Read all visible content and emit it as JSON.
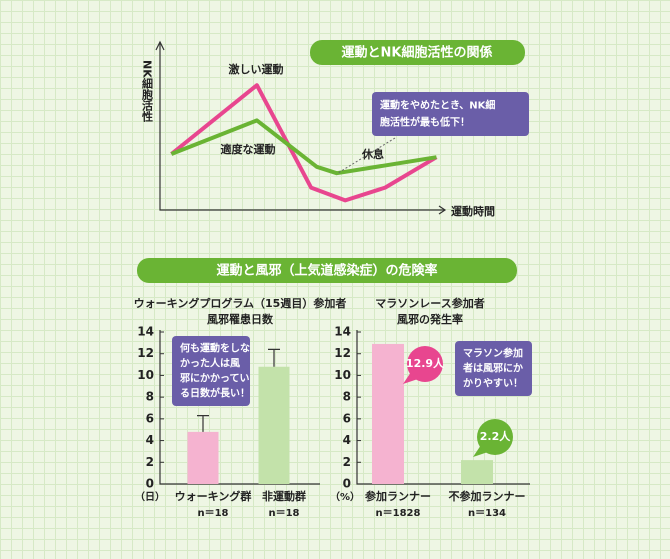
{
  "section_title": "運動と風邪（上気道感染症）の危険率",
  "chart_data": [
    {
      "type": "line",
      "title": "運動とNK細胞活性の関係",
      "ylabel": "NK細胞活性",
      "xlabel": "運動時間",
      "xlim": [
        0,
        10
      ],
      "ylim": [
        0,
        10
      ],
      "series": [
        {
          "name": "激しい運動",
          "color": "#e8468f",
          "x": [
            0.4,
            3.4,
            5.3,
            6.5,
            7.9,
            9.7
          ],
          "values": [
            3.5,
            7.8,
            1.4,
            0.6,
            1.4,
            3.3
          ]
        },
        {
          "name": "適度な運動",
          "color": "#6ab434",
          "x": [
            0.4,
            3.4,
            5.5,
            6.2,
            9.7
          ],
          "values": [
            3.5,
            5.6,
            2.7,
            2.3,
            3.3
          ]
        }
      ],
      "annotations": [
        "休息"
      ],
      "note": [
        "運動をやめたとき、NK細",
        "胞活性が最も低下！"
      ]
    },
    {
      "type": "bar",
      "title": [
        "ウォーキングプログラム（15週目）参加者",
        "風邪罹患日数"
      ],
      "yunit": "（日）",
      "categories": [
        "ウォーキング群",
        "非運動群"
      ],
      "counts": [
        "n＝18",
        "n＝18"
      ],
      "values": [
        4.8,
        10.8
      ],
      "errors": [
        1.5,
        1.6
      ],
      "colors": [
        "#f5b3d0",
        "#c3e2aa"
      ],
      "ylim": [
        0,
        14
      ],
      "yticks": [
        0,
        2,
        4,
        6,
        8,
        10,
        12,
        14
      ],
      "note": [
        "何も運動をしな",
        "かった人は風",
        "邪にかかってい",
        "る日数が長い！"
      ]
    },
    {
      "type": "bar",
      "title": [
        "マラソンレース参加者",
        "風邪の発生率"
      ],
      "yunit": "（%）",
      "categories": [
        "参加ランナー",
        "不参加ランナー"
      ],
      "counts": [
        "n＝1828",
        "n＝134"
      ],
      "values": [
        12.9,
        2.2
      ],
      "value_labels": [
        "12.9人",
        "2.2人"
      ],
      "value_label_colors": [
        "#e8468f",
        "#6ab434"
      ],
      "colors": [
        "#f5b3d0",
        "#c3e2aa"
      ],
      "ylim": [
        0,
        14
      ],
      "yticks": [
        0,
        2,
        4,
        6,
        8,
        10,
        12,
        14
      ],
      "note": [
        "マラソン参加",
        "者は風邪にか",
        "かりやすい！"
      ]
    }
  ]
}
